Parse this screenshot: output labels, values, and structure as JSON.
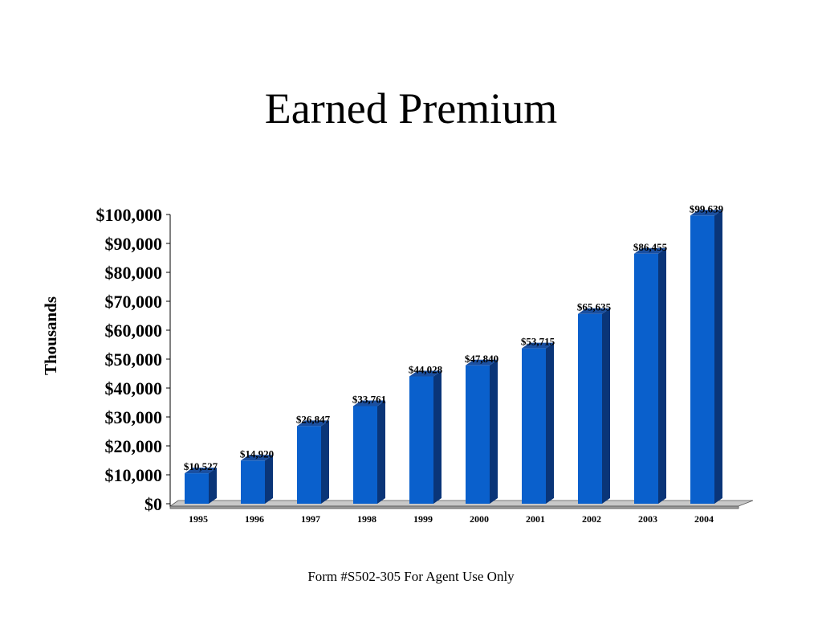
{
  "slide": {
    "title": "Earned Premium",
    "footer": "Form #S502-305 For Agent Use Only"
  },
  "colors": {
    "bar_front": "#0a60cc",
    "bar_side": "#0a3578",
    "bar_top": "#1a4fa0",
    "floor": "#9a9a9a",
    "text": "#000000"
  },
  "chart_data": {
    "type": "bar",
    "title": "Earned Premium",
    "xlabel": "",
    "ylabel": "Thousands",
    "ylim": [
      0,
      100000
    ],
    "y_ticks": [
      0,
      10000,
      20000,
      30000,
      40000,
      50000,
      60000,
      70000,
      80000,
      90000,
      100000
    ],
    "y_tick_labels": [
      "$0",
      "$10,000",
      "$20,000",
      "$30,000",
      "$40,000",
      "$50,000",
      "$60,000",
      "$70,000",
      "$80,000",
      "$90,000",
      "$100,000"
    ],
    "categories": [
      "1995",
      "1996",
      "1997",
      "1998",
      "1999",
      "2000",
      "2001",
      "2002",
      "2003",
      "2004"
    ],
    "values": [
      10527,
      14920,
      26847,
      33761,
      44028,
      47840,
      53715,
      65635,
      86455,
      99639
    ],
    "data_labels": [
      "$10,527",
      "$14,920",
      "$26,847",
      "$33,761",
      "$44,028",
      "$47,840",
      "$53,715",
      "$65,635",
      "$86,455",
      "$99,639"
    ],
    "grid": false,
    "legend": "none",
    "style": "3d-column"
  }
}
